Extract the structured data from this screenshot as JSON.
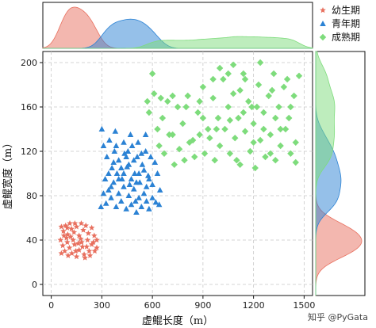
{
  "chart_data": {
    "type": "scatter",
    "xlabel": "虚鲲长度（m）",
    "ylabel": "虚鲲宽度（m）",
    "xlim": [
      -50,
      1550
    ],
    "ylim": [
      -10,
      210
    ],
    "xticks": [
      0,
      300,
      600,
      900,
      1200,
      1500
    ],
    "yticks": [
      0,
      40,
      80,
      120,
      160,
      200
    ],
    "grid": true,
    "legend_position": "top-right",
    "marginals": "density",
    "series": [
      {
        "name": "幼生期",
        "marker": "star",
        "color": "#e8705f",
        "points": [
          [
            60,
            52
          ],
          [
            72,
            48
          ],
          [
            85,
            53
          ],
          [
            98,
            45
          ],
          [
            110,
            55
          ],
          [
            120,
            50
          ],
          [
            135,
            47
          ],
          [
            150,
            52
          ],
          [
            165,
            44
          ],
          [
            178,
            55
          ],
          [
            190,
            49
          ],
          [
            205,
            53
          ],
          [
            220,
            46
          ],
          [
            240,
            51
          ],
          [
            255,
            44
          ],
          [
            270,
            40
          ],
          [
            55,
            40
          ],
          [
            68,
            35
          ],
          [
            80,
            30
          ],
          [
            95,
            38
          ],
          [
            108,
            33
          ],
          [
            122,
            28
          ],
          [
            138,
            36
          ],
          [
            150,
            25
          ],
          [
            165,
            31
          ],
          [
            180,
            38
          ],
          [
            195,
            27
          ],
          [
            210,
            34
          ],
          [
            225,
            30
          ],
          [
            240,
            36
          ],
          [
            258,
            30
          ],
          [
            270,
            33
          ],
          [
            90,
            42
          ],
          [
            130,
            40
          ],
          [
            175,
            41
          ],
          [
            215,
            40
          ],
          [
            60,
            28
          ],
          [
            100,
            26
          ],
          [
            145,
            30
          ],
          [
            200,
            24
          ],
          [
            230,
            26
          ],
          [
            75,
            44
          ],
          [
            160,
            37
          ],
          [
            250,
            38
          ],
          [
            115,
            43
          ],
          [
            185,
            34
          ],
          [
            140,
            55
          ],
          [
            95,
            51
          ]
        ]
      },
      {
        "name": "青年期",
        "marker": "triangle",
        "color": "#2b82d4",
        "points": [
          [
            300,
            140
          ],
          [
            310,
            125
          ],
          [
            330,
            115
          ],
          [
            345,
            130
          ],
          [
            360,
            105
          ],
          [
            375,
            120
          ],
          [
            390,
            100
          ],
          [
            400,
            112
          ],
          [
            420,
            95
          ],
          [
            435,
            118
          ],
          [
            450,
            106
          ],
          [
            465,
            90
          ],
          [
            480,
            125
          ],
          [
            495,
            100
          ],
          [
            510,
            115
          ],
          [
            525,
            92
          ],
          [
            540,
            108
          ],
          [
            560,
            120
          ],
          [
            575,
            98
          ],
          [
            590,
            115
          ],
          [
            615,
            110
          ],
          [
            630,
            100
          ],
          [
            645,
            85
          ],
          [
            320,
            95
          ],
          [
            340,
            85
          ],
          [
            355,
            78
          ],
          [
            370,
            92
          ],
          [
            385,
            70
          ],
          [
            400,
            82
          ],
          [
            415,
            75
          ],
          [
            430,
            88
          ],
          [
            445,
            68
          ],
          [
            460,
            80
          ],
          [
            475,
            72
          ],
          [
            490,
            86
          ],
          [
            505,
            65
          ],
          [
            520,
            78
          ],
          [
            535,
            70
          ],
          [
            550,
            82
          ],
          [
            565,
            75
          ],
          [
            580,
            68
          ],
          [
            600,
            90
          ],
          [
            620,
            74
          ],
          [
            295,
            70
          ],
          [
            310,
            82
          ],
          [
            325,
            73
          ],
          [
            340,
            100
          ],
          [
            355,
            88
          ],
          [
            370,
            110
          ],
          [
            385,
            125
          ],
          [
            400,
            95
          ],
          [
            415,
            105
          ],
          [
            430,
            100
          ],
          [
            445,
            115
          ],
          [
            460,
            108
          ],
          [
            475,
            95
          ],
          [
            490,
            112
          ],
          [
            505,
            92
          ],
          [
            520,
            100
          ],
          [
            535,
            118
          ],
          [
            550,
            103
          ],
          [
            565,
            88
          ],
          [
            580,
            95
          ],
          [
            430,
            128
          ],
          [
            470,
            135
          ],
          [
            515,
            128
          ],
          [
            560,
            135
          ],
          [
            380,
            138
          ],
          [
            455,
            120
          ],
          [
            500,
            75
          ],
          [
            600,
            78
          ],
          [
            640,
            72
          ]
        ]
      },
      {
        "name": "成熟期",
        "marker": "diamond",
        "color": "#7edc7c",
        "points": [
          [
            600,
            190
          ],
          [
            630,
            140
          ],
          [
            660,
            150
          ],
          [
            690,
            165
          ],
          [
            720,
            135
          ],
          [
            750,
            160
          ],
          [
            780,
            145
          ],
          [
            810,
            170
          ],
          [
            840,
            130
          ],
          [
            870,
            155
          ],
          [
            900,
            178
          ],
          [
            930,
            140
          ],
          [
            960,
            168
          ],
          [
            990,
            150
          ],
          [
            1020,
            185
          ],
          [
            1050,
            160
          ],
          [
            1080,
            172
          ],
          [
            1110,
            150
          ],
          [
            1140,
            190
          ],
          [
            1170,
            165
          ],
          [
            1200,
            145
          ],
          [
            1230,
            180
          ],
          [
            1260,
            155
          ],
          [
            1290,
            170
          ],
          [
            1320,
            190
          ],
          [
            1350,
            160
          ],
          [
            1380,
            178
          ],
          [
            1410,
            150
          ],
          [
            1440,
            170
          ],
          [
            1470,
            188
          ],
          [
            580,
            155
          ],
          [
            610,
            172
          ],
          [
            640,
            125
          ],
          [
            670,
            118
          ],
          [
            700,
            135
          ],
          [
            730,
            108
          ],
          [
            760,
            122
          ],
          [
            790,
            112
          ],
          [
            820,
            128
          ],
          [
            850,
            115
          ],
          [
            880,
            135
          ],
          [
            910,
            118
          ],
          [
            940,
            132
          ],
          [
            970,
            112
          ],
          [
            1000,
            125
          ],
          [
            1030,
            140
          ],
          [
            1060,
            118
          ],
          [
            1090,
            132
          ],
          [
            1120,
            108
          ],
          [
            1150,
            138
          ],
          [
            1180,
            120
          ],
          [
            1210,
            105
          ],
          [
            1240,
            130
          ],
          [
            1270,
            115
          ],
          [
            1300,
            135
          ],
          [
            1330,
            112
          ],
          [
            1360,
            125
          ],
          [
            1390,
            140
          ],
          [
            1420,
            118
          ],
          [
            1450,
            110
          ],
          [
            1000,
            195
          ],
          [
            1080,
            198
          ],
          [
            1150,
            185
          ],
          [
            1240,
            200
          ],
          [
            1310,
            175
          ],
          [
            1400,
            185
          ],
          [
            720,
            170
          ],
          [
            800,
            160
          ],
          [
            880,
            165
          ],
          [
            960,
            185
          ],
          [
            1050,
            190
          ],
          [
            1120,
            175
          ],
          [
            1190,
            160
          ],
          [
            1260,
            140
          ],
          [
            1330,
            150
          ],
          [
            1420,
            160
          ],
          [
            1100,
            112
          ],
          [
            1200,
            128
          ],
          [
            1300,
            118
          ],
          [
            900,
            150
          ],
          [
            980,
            140
          ],
          [
            1060,
            148
          ],
          [
            1140,
            155
          ],
          [
            1220,
            160
          ],
          [
            1360,
            140
          ],
          [
            1450,
            128
          ],
          [
            650,
            168
          ],
          [
            570,
            165
          ]
        ]
      }
    ]
  },
  "watermark": "知乎 @PyGata"
}
